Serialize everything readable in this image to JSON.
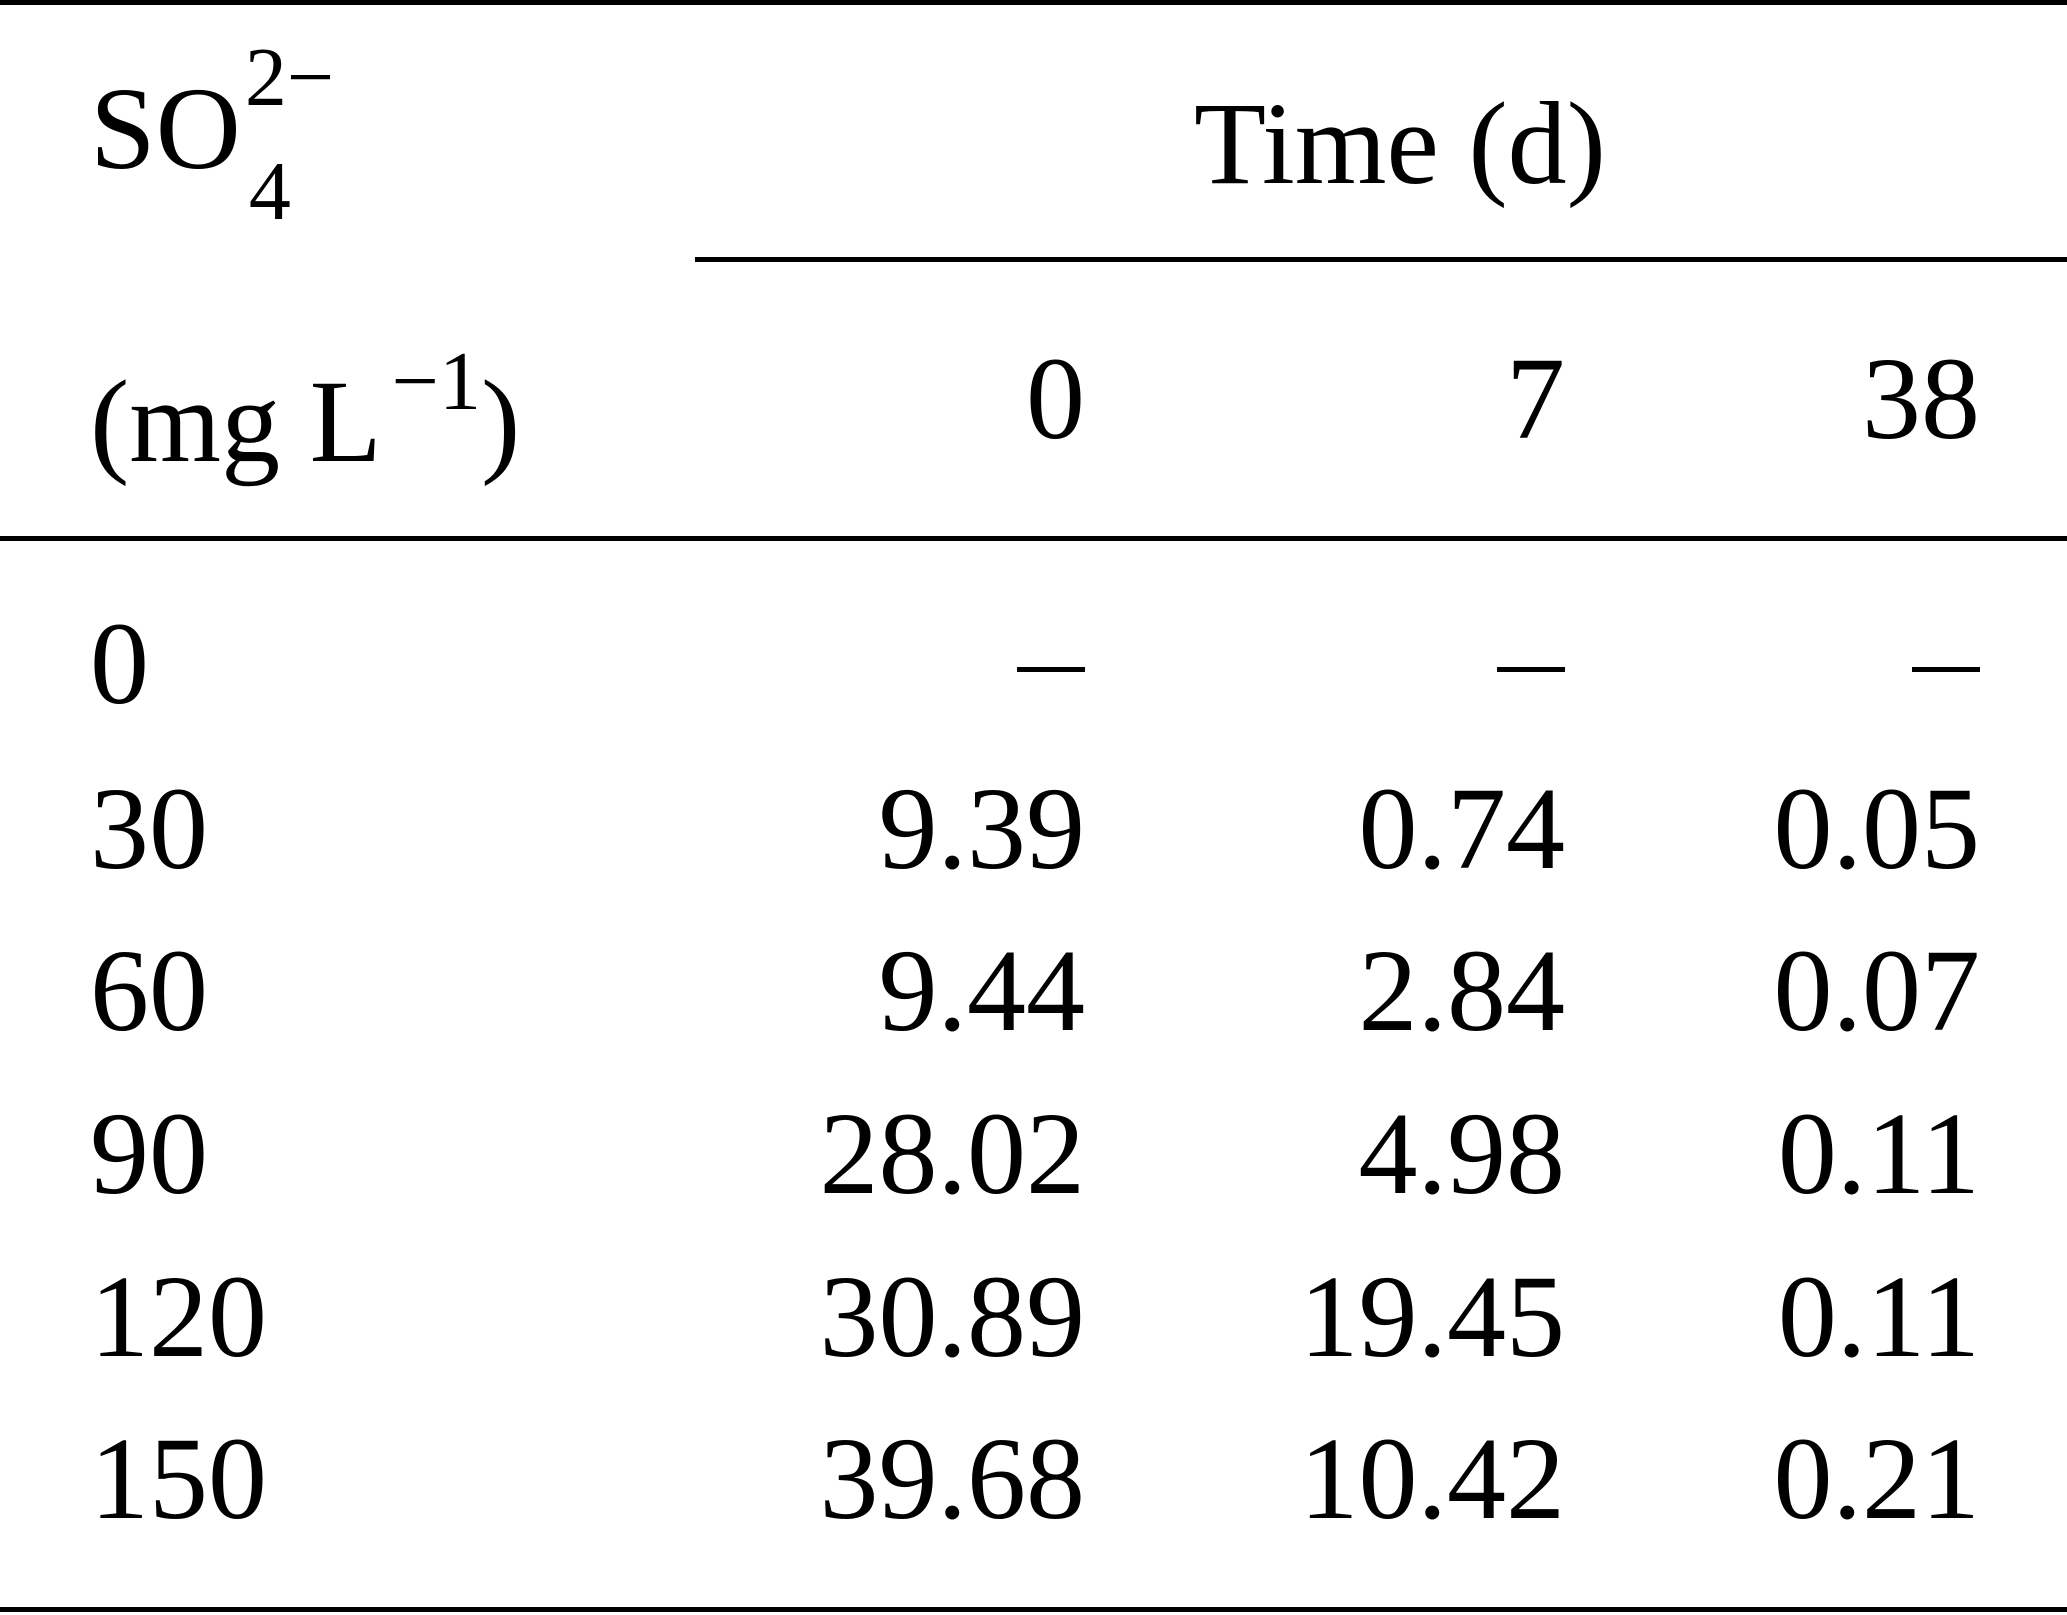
{
  "header": {
    "species_base": "SO",
    "species_superscript": "2−",
    "species_subscript": "4",
    "unit_main": "(mg L",
    "unit_superscript": "−1",
    "unit_close": ")",
    "group_label": "Time (d)",
    "columns": [
      "0",
      "7",
      "38"
    ]
  },
  "rows": [
    {
      "label": "0",
      "values": [
        "–",
        "–",
        "–"
      ]
    },
    {
      "label": "30",
      "values": [
        "9.39",
        "0.74",
        "0.05"
      ]
    },
    {
      "label": "60",
      "values": [
        "9.44",
        "2.84",
        "0.07"
      ]
    },
    {
      "label": "90",
      "values": [
        "28.02",
        "4.98",
        "0.11"
      ]
    },
    {
      "label": "120",
      "values": [
        "30.89",
        "19.45",
        "0.11"
      ]
    },
    {
      "label": "150",
      "values": [
        "39.68",
        "10.42",
        "0.21"
      ]
    }
  ]
}
